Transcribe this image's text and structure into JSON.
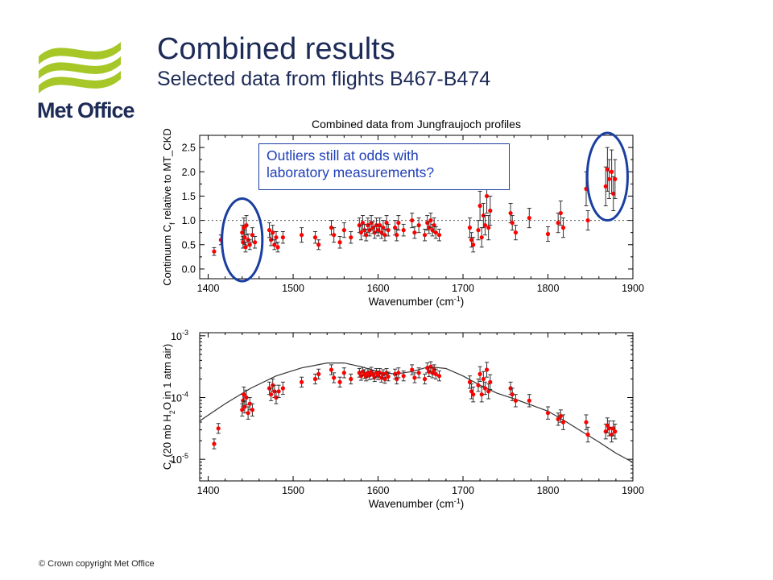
{
  "header": {
    "title": "Combined results",
    "subtitle": "Selected data from flights B467-B474",
    "logo_text": "Met Office"
  },
  "annotation": {
    "line1": "Outliers still at odds with",
    "line2": "laboratory measurements?"
  },
  "footer": {
    "copyright": "© Crown copyright   Met Office"
  },
  "colors": {
    "brand_green": "#a6c727",
    "brand_navy": "#1d2b57",
    "point_red": "#ff0000",
    "highlight_blue": "#1a3fa0"
  },
  "chart_data": [
    {
      "type": "scatter",
      "title": "Combined data from Jungfraujoch profiles",
      "xlabel": "Wavenumber (cm⁻¹)",
      "ylabel_parts": [
        "Continuum C",
        "f",
        " relative to MT_CKD"
      ],
      "xlim": [
        1390,
        1900
      ],
      "ylim": [
        -0.2,
        2.75
      ],
      "x_ticks": [
        1400,
        1500,
        1600,
        1700,
        1800,
        1900
      ],
      "y_ticks": [
        0.0,
        0.5,
        1.0,
        1.5,
        2.0,
        2.5
      ],
      "y_tick_labels": [
        "0.0",
        "0.5",
        "1.0",
        "1.5",
        "2.0",
        "2.5"
      ],
      "reference_line": 1.0,
      "error_bars": true,
      "highlighted_regions": [
        [
          1420,
          1460
        ],
        [
          1850,
          1890
        ]
      ],
      "points": [
        {
          "x": 1407,
          "y": 0.36,
          "e": 0.08
        },
        {
          "x": 1415,
          "y": 0.6,
          "e": 0.1
        },
        {
          "x": 1440,
          "y": 0.75,
          "e": 0.15
        },
        {
          "x": 1441,
          "y": 0.55,
          "e": 0.12
        },
        {
          "x": 1442,
          "y": 0.85,
          "e": 0.2
        },
        {
          "x": 1443,
          "y": 0.65,
          "e": 0.15
        },
        {
          "x": 1444,
          "y": 0.45,
          "e": 0.1
        },
        {
          "x": 1445,
          "y": 0.9,
          "e": 0.2
        },
        {
          "x": 1447,
          "y": 0.6,
          "e": 0.12
        },
        {
          "x": 1449,
          "y": 0.5,
          "e": 0.1
        },
        {
          "x": 1452,
          "y": 0.7,
          "e": 0.15
        },
        {
          "x": 1455,
          "y": 0.55,
          "e": 0.12
        },
        {
          "x": 1472,
          "y": 0.8,
          "e": 0.15
        },
        {
          "x": 1474,
          "y": 0.6,
          "e": 0.12
        },
        {
          "x": 1476,
          "y": 0.75,
          "e": 0.15
        },
        {
          "x": 1478,
          "y": 0.5,
          "e": 0.1
        },
        {
          "x": 1480,
          "y": 0.65,
          "e": 0.12
        },
        {
          "x": 1482,
          "y": 0.45,
          "e": 0.1
        },
        {
          "x": 1488,
          "y": 0.65,
          "e": 0.12
        },
        {
          "x": 1510,
          "y": 0.7,
          "e": 0.15
        },
        {
          "x": 1526,
          "y": 0.65,
          "e": 0.12
        },
        {
          "x": 1530,
          "y": 0.5,
          "e": 0.1
        },
        {
          "x": 1545,
          "y": 0.85,
          "e": 0.15
        },
        {
          "x": 1548,
          "y": 0.7,
          "e": 0.15
        },
        {
          "x": 1555,
          "y": 0.55,
          "e": 0.12
        },
        {
          "x": 1560,
          "y": 0.8,
          "e": 0.15
        },
        {
          "x": 1568,
          "y": 0.65,
          "e": 0.12
        },
        {
          "x": 1578,
          "y": 0.9,
          "e": 0.15
        },
        {
          "x": 1580,
          "y": 0.75,
          "e": 0.15
        },
        {
          "x": 1582,
          "y": 0.95,
          "e": 0.15
        },
        {
          "x": 1584,
          "y": 0.8,
          "e": 0.12
        },
        {
          "x": 1586,
          "y": 0.7,
          "e": 0.12
        },
        {
          "x": 1588,
          "y": 0.9,
          "e": 0.15
        },
        {
          "x": 1590,
          "y": 0.8,
          "e": 0.12
        },
        {
          "x": 1592,
          "y": 0.95,
          "e": 0.15
        },
        {
          "x": 1594,
          "y": 0.85,
          "e": 0.12
        },
        {
          "x": 1596,
          "y": 0.75,
          "e": 0.12
        },
        {
          "x": 1598,
          "y": 0.9,
          "e": 0.15
        },
        {
          "x": 1600,
          "y": 0.8,
          "e": 0.12
        },
        {
          "x": 1602,
          "y": 0.9,
          "e": 0.15
        },
        {
          "x": 1604,
          "y": 0.75,
          "e": 0.12
        },
        {
          "x": 1606,
          "y": 0.85,
          "e": 0.15
        },
        {
          "x": 1608,
          "y": 0.7,
          "e": 0.12
        },
        {
          "x": 1610,
          "y": 0.95,
          "e": 0.15
        },
        {
          "x": 1612,
          "y": 0.8,
          "e": 0.12
        },
        {
          "x": 1620,
          "y": 0.85,
          "e": 0.15
        },
        {
          "x": 1622,
          "y": 0.7,
          "e": 0.12
        },
        {
          "x": 1624,
          "y": 0.95,
          "e": 0.15
        },
        {
          "x": 1630,
          "y": 0.8,
          "e": 0.12
        },
        {
          "x": 1640,
          "y": 1.0,
          "e": 0.15
        },
        {
          "x": 1643,
          "y": 0.75,
          "e": 0.12
        },
        {
          "x": 1648,
          "y": 0.9,
          "e": 0.15
        },
        {
          "x": 1655,
          "y": 0.7,
          "e": 0.12
        },
        {
          "x": 1658,
          "y": 0.95,
          "e": 0.15
        },
        {
          "x": 1660,
          "y": 0.85,
          "e": 0.12
        },
        {
          "x": 1662,
          "y": 1.0,
          "e": 0.15
        },
        {
          "x": 1664,
          "y": 0.8,
          "e": 0.12
        },
        {
          "x": 1666,
          "y": 0.9,
          "e": 0.15
        },
        {
          "x": 1668,
          "y": 0.75,
          "e": 0.12
        },
        {
          "x": 1672,
          "y": 0.7,
          "e": 0.12
        },
        {
          "x": 1708,
          "y": 0.85,
          "e": 0.2
        },
        {
          "x": 1710,
          "y": 0.6,
          "e": 0.15
        },
        {
          "x": 1712,
          "y": 0.5,
          "e": 0.15
        },
        {
          "x": 1718,
          "y": 0.8,
          "e": 0.2
        },
        {
          "x": 1720,
          "y": 1.3,
          "e": 0.3
        },
        {
          "x": 1722,
          "y": 0.65,
          "e": 0.2
        },
        {
          "x": 1724,
          "y": 1.1,
          "e": 0.25
        },
        {
          "x": 1726,
          "y": 0.9,
          "e": 0.2
        },
        {
          "x": 1728,
          "y": 1.5,
          "e": 0.35
        },
        {
          "x": 1730,
          "y": 0.85,
          "e": 0.25
        },
        {
          "x": 1732,
          "y": 1.2,
          "e": 0.3
        },
        {
          "x": 1756,
          "y": 1.15,
          "e": 0.2
        },
        {
          "x": 1758,
          "y": 0.95,
          "e": 0.15
        },
        {
          "x": 1762,
          "y": 0.75,
          "e": 0.15
        },
        {
          "x": 1778,
          "y": 1.05,
          "e": 0.2
        },
        {
          "x": 1800,
          "y": 0.72,
          "e": 0.15
        },
        {
          "x": 1812,
          "y": 0.95,
          "e": 0.2
        },
        {
          "x": 1815,
          "y": 1.15,
          "e": 0.25
        },
        {
          "x": 1818,
          "y": 0.85,
          "e": 0.2
        },
        {
          "x": 1845,
          "y": 1.65,
          "e": 0.35
        },
        {
          "x": 1847,
          "y": 1.0,
          "e": 0.2
        },
        {
          "x": 1868,
          "y": 1.7,
          "e": 0.4
        },
        {
          "x": 1870,
          "y": 2.05,
          "e": 0.45
        },
        {
          "x": 1872,
          "y": 1.85,
          "e": 0.4
        },
        {
          "x": 1875,
          "y": 2.0,
          "e": 0.45
        },
        {
          "x": 1877,
          "y": 1.55,
          "e": 0.35
        },
        {
          "x": 1879,
          "y": 1.85,
          "e": 0.4
        }
      ]
    },
    {
      "type": "scatter",
      "title": "",
      "xlabel": "Wavenumber (cm⁻¹)",
      "ylabel_parts": [
        "C",
        "f",
        " (20 mb H",
        "2",
        "O in 1 atm air)"
      ],
      "xlim": [
        1390,
        1900
      ],
      "ylim_log10": [
        -5.35,
        -2.95
      ],
      "x_ticks": [
        1400,
        1500,
        1600,
        1700,
        1800,
        1900
      ],
      "y_ticks_log10": [
        -5,
        -4,
        -3
      ],
      "y_tick_labels": [
        [
          "10",
          "-5"
        ],
        [
          "10",
          "-4"
        ],
        [
          "10",
          "-3"
        ]
      ],
      "scale": "log",
      "error_bars": true,
      "model_curve_name": "MT_CKD",
      "model_curve": [
        {
          "x": 1390,
          "y": -4.38
        },
        {
          "x": 1420,
          "y": -4.1
        },
        {
          "x": 1450,
          "y": -3.85
        },
        {
          "x": 1480,
          "y": -3.65
        },
        {
          "x": 1510,
          "y": -3.52
        },
        {
          "x": 1540,
          "y": -3.44
        },
        {
          "x": 1560,
          "y": -3.44
        },
        {
          "x": 1580,
          "y": -3.5
        },
        {
          "x": 1600,
          "y": -3.58
        },
        {
          "x": 1620,
          "y": -3.62
        },
        {
          "x": 1640,
          "y": -3.58
        },
        {
          "x": 1660,
          "y": -3.5
        },
        {
          "x": 1680,
          "y": -3.53
        },
        {
          "x": 1700,
          "y": -3.65
        },
        {
          "x": 1720,
          "y": -3.8
        },
        {
          "x": 1740,
          "y": -3.93
        },
        {
          "x": 1760,
          "y": -4.02
        },
        {
          "x": 1780,
          "y": -4.12
        },
        {
          "x": 1800,
          "y": -4.22
        },
        {
          "x": 1820,
          "y": -4.38
        },
        {
          "x": 1840,
          "y": -4.55
        },
        {
          "x": 1860,
          "y": -4.72
        },
        {
          "x": 1880,
          "y": -4.9
        },
        {
          "x": 1900,
          "y": -5.05
        }
      ],
      "points": [
        {
          "x": 1407,
          "y": -4.75,
          "e": 0.08
        },
        {
          "x": 1412,
          "y": -4.5,
          "e": 0.08
        },
        {
          "x": 1440,
          "y": -4.2,
          "e": 0.1
        },
        {
          "x": 1441,
          "y": -4.05,
          "e": 0.1
        },
        {
          "x": 1442,
          "y": -3.95,
          "e": 0.12
        },
        {
          "x": 1443,
          "y": -4.15,
          "e": 0.1
        },
        {
          "x": 1445,
          "y": -4.0,
          "e": 0.12
        },
        {
          "x": 1447,
          "y": -4.25,
          "e": 0.1
        },
        {
          "x": 1449,
          "y": -4.1,
          "e": 0.1
        },
        {
          "x": 1452,
          "y": -4.2,
          "e": 0.1
        },
        {
          "x": 1472,
          "y": -3.85,
          "e": 0.1
        },
        {
          "x": 1474,
          "y": -3.95,
          "e": 0.1
        },
        {
          "x": 1476,
          "y": -3.8,
          "e": 0.1
        },
        {
          "x": 1478,
          "y": -3.9,
          "e": 0.1
        },
        {
          "x": 1480,
          "y": -4.0,
          "e": 0.1
        },
        {
          "x": 1483,
          "y": -3.9,
          "e": 0.1
        },
        {
          "x": 1488,
          "y": -3.85,
          "e": 0.1
        },
        {
          "x": 1510,
          "y": -3.75,
          "e": 0.08
        },
        {
          "x": 1526,
          "y": -3.7,
          "e": 0.08
        },
        {
          "x": 1530,
          "y": -3.62,
          "e": 0.08
        },
        {
          "x": 1545,
          "y": -3.55,
          "e": 0.08
        },
        {
          "x": 1548,
          "y": -3.68,
          "e": 0.08
        },
        {
          "x": 1555,
          "y": -3.75,
          "e": 0.08
        },
        {
          "x": 1560,
          "y": -3.6,
          "e": 0.08
        },
        {
          "x": 1568,
          "y": -3.7,
          "e": 0.08
        },
        {
          "x": 1578,
          "y": -3.6,
          "e": 0.07
        },
        {
          "x": 1580,
          "y": -3.65,
          "e": 0.07
        },
        {
          "x": 1582,
          "y": -3.58,
          "e": 0.07
        },
        {
          "x": 1584,
          "y": -3.62,
          "e": 0.07
        },
        {
          "x": 1586,
          "y": -3.66,
          "e": 0.07
        },
        {
          "x": 1588,
          "y": -3.6,
          "e": 0.07
        },
        {
          "x": 1590,
          "y": -3.64,
          "e": 0.07
        },
        {
          "x": 1592,
          "y": -3.58,
          "e": 0.07
        },
        {
          "x": 1594,
          "y": -3.63,
          "e": 0.07
        },
        {
          "x": 1596,
          "y": -3.67,
          "e": 0.07
        },
        {
          "x": 1598,
          "y": -3.6,
          "e": 0.07
        },
        {
          "x": 1600,
          "y": -3.64,
          "e": 0.07
        },
        {
          "x": 1602,
          "y": -3.6,
          "e": 0.07
        },
        {
          "x": 1604,
          "y": -3.68,
          "e": 0.07
        },
        {
          "x": 1606,
          "y": -3.62,
          "e": 0.07
        },
        {
          "x": 1608,
          "y": -3.7,
          "e": 0.07
        },
        {
          "x": 1610,
          "y": -3.6,
          "e": 0.07
        },
        {
          "x": 1612,
          "y": -3.66,
          "e": 0.07
        },
        {
          "x": 1620,
          "y": -3.62,
          "e": 0.08
        },
        {
          "x": 1622,
          "y": -3.7,
          "e": 0.08
        },
        {
          "x": 1624,
          "y": -3.6,
          "e": 0.08
        },
        {
          "x": 1630,
          "y": -3.65,
          "e": 0.08
        },
        {
          "x": 1640,
          "y": -3.55,
          "e": 0.08
        },
        {
          "x": 1643,
          "y": -3.68,
          "e": 0.08
        },
        {
          "x": 1648,
          "y": -3.6,
          "e": 0.08
        },
        {
          "x": 1655,
          "y": -3.7,
          "e": 0.08
        },
        {
          "x": 1658,
          "y": -3.52,
          "e": 0.08
        },
        {
          "x": 1660,
          "y": -3.58,
          "e": 0.08
        },
        {
          "x": 1662,
          "y": -3.5,
          "e": 0.08
        },
        {
          "x": 1664,
          "y": -3.6,
          "e": 0.08
        },
        {
          "x": 1666,
          "y": -3.55,
          "e": 0.08
        },
        {
          "x": 1668,
          "y": -3.62,
          "e": 0.08
        },
        {
          "x": 1672,
          "y": -3.65,
          "e": 0.08
        },
        {
          "x": 1708,
          "y": -3.75,
          "e": 0.1
        },
        {
          "x": 1710,
          "y": -3.9,
          "e": 0.12
        },
        {
          "x": 1712,
          "y": -3.95,
          "e": 0.12
        },
        {
          "x": 1718,
          "y": -3.8,
          "e": 0.1
        },
        {
          "x": 1720,
          "y": -3.62,
          "e": 0.12
        },
        {
          "x": 1722,
          "y": -3.95,
          "e": 0.12
        },
        {
          "x": 1724,
          "y": -3.7,
          "e": 0.12
        },
        {
          "x": 1726,
          "y": -3.85,
          "e": 0.1
        },
        {
          "x": 1728,
          "y": -3.55,
          "e": 0.12
        },
        {
          "x": 1730,
          "y": -3.9,
          "e": 0.12
        },
        {
          "x": 1732,
          "y": -3.75,
          "e": 0.12
        },
        {
          "x": 1756,
          "y": -3.85,
          "e": 0.1
        },
        {
          "x": 1758,
          "y": -3.95,
          "e": 0.1
        },
        {
          "x": 1762,
          "y": -4.05,
          "e": 0.1
        },
        {
          "x": 1778,
          "y": -4.05,
          "e": 0.1
        },
        {
          "x": 1800,
          "y": -4.25,
          "e": 0.1
        },
        {
          "x": 1812,
          "y": -4.35,
          "e": 0.1
        },
        {
          "x": 1815,
          "y": -4.3,
          "e": 0.1
        },
        {
          "x": 1818,
          "y": -4.4,
          "e": 0.12
        },
        {
          "x": 1845,
          "y": -4.4,
          "e": 0.12
        },
        {
          "x": 1847,
          "y": -4.6,
          "e": 0.12
        },
        {
          "x": 1868,
          "y": -4.55,
          "e": 0.12
        },
        {
          "x": 1870,
          "y": -4.45,
          "e": 0.12
        },
        {
          "x": 1872,
          "y": -4.5,
          "e": 0.12
        },
        {
          "x": 1875,
          "y": -4.6,
          "e": 0.12
        },
        {
          "x": 1877,
          "y": -4.5,
          "e": 0.12
        },
        {
          "x": 1879,
          "y": -4.55,
          "e": 0.12
        }
      ]
    }
  ]
}
